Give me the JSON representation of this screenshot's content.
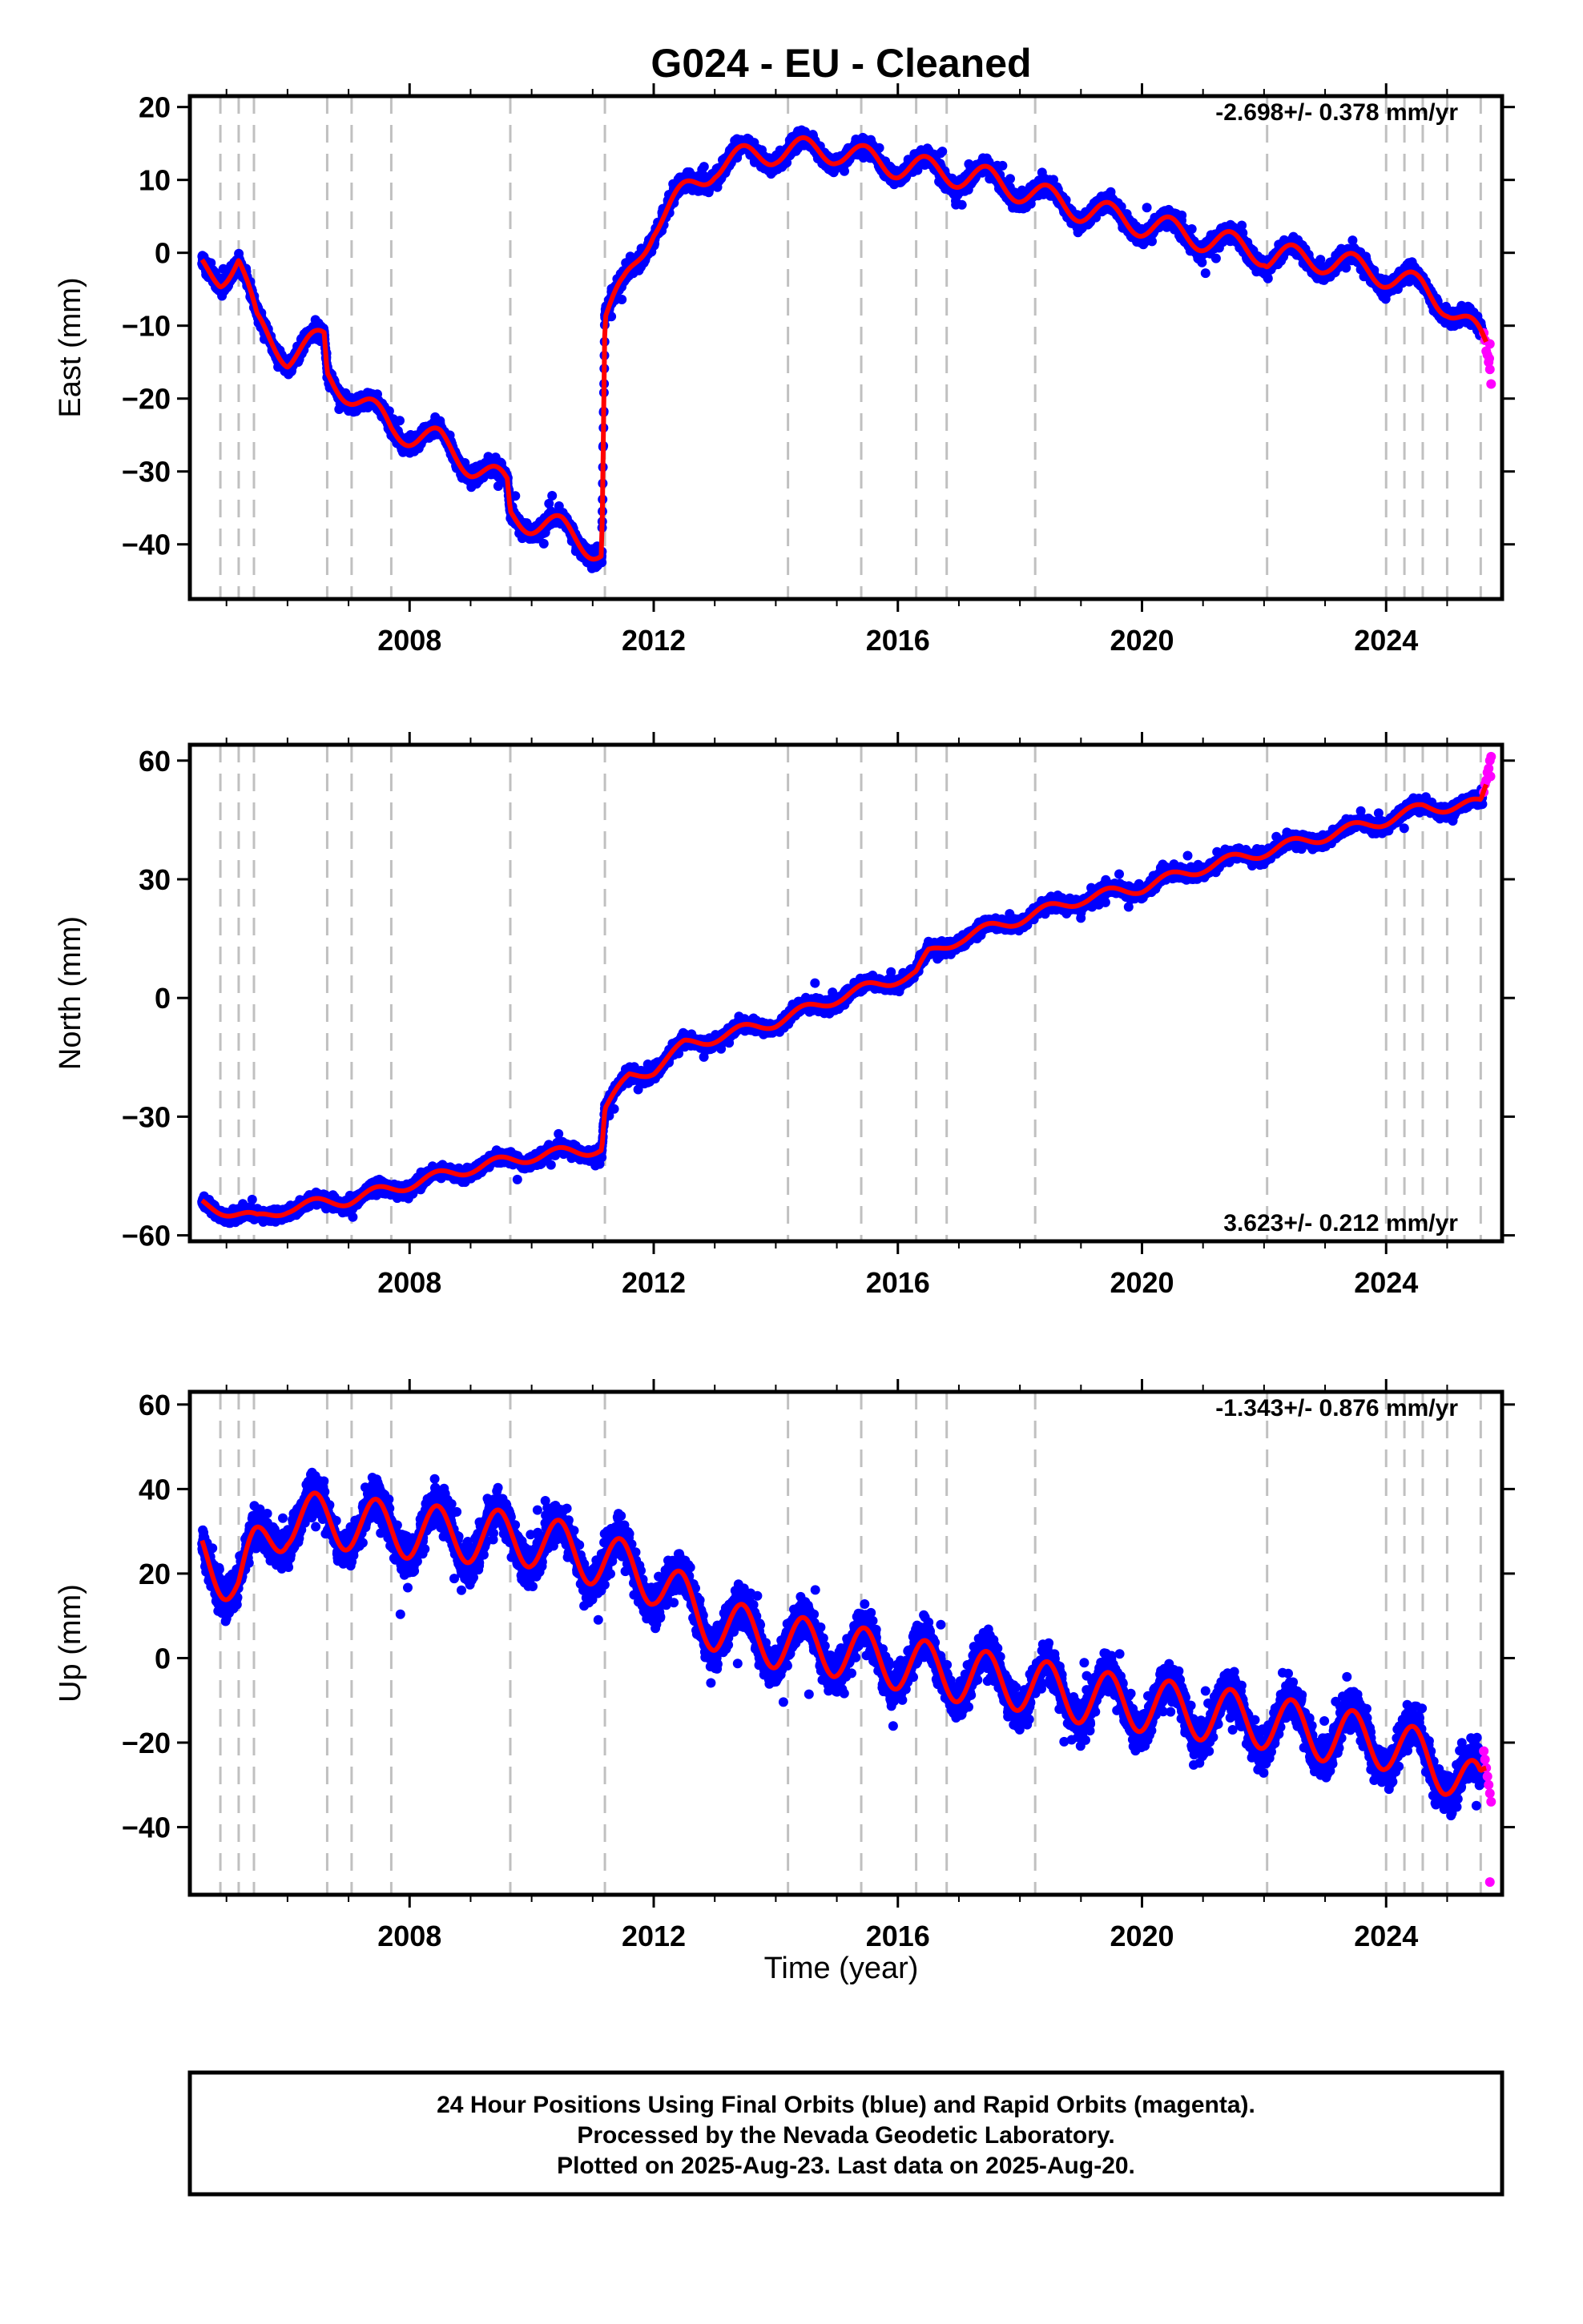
{
  "title": "G024  - EU - Cleaned",
  "xlabel": "Time (year)",
  "footer": [
    "24 Hour Positions Using Final Orbits (blue) and Rapid Orbits (magenta).",
    "Processed by the Nevada Geodetic Laboratory.",
    "Plotted on 2025-Aug-23. Last data on 2025-Aug-20."
  ],
  "colors": {
    "final": "#0000ff",
    "rapid": "#ff00ff",
    "model": "#ff0000",
    "events": "#c0c0c0"
  },
  "chart_data": [
    {
      "type": "scatter",
      "ylabel": "East (mm)",
      "rate_label": "-2.698+/- 0.378 mm/yr",
      "xlim": [
        2004.4,
        2025.9
      ],
      "ylim": [
        -47.5,
        21.5
      ],
      "xticks": [
        2008,
        2012,
        2016,
        2020,
        2024
      ],
      "yticks": [
        -40,
        -30,
        -20,
        -10,
        0,
        10,
        20
      ],
      "grid": false,
      "events": [
        2004.9,
        2005.2,
        2005.45,
        2006.65,
        2007.05,
        2007.7,
        2009.65,
        2011.2,
        2014.2,
        2015.4,
        2016.3,
        2016.8,
        2018.25,
        2022.05,
        2024.0,
        2024.3,
        2024.6,
        2025.0,
        2025.55
      ],
      "noise": 1.3,
      "seasonal_amp": 1.8,
      "model_knots": [
        [
          2004.6,
          -2
        ],
        [
          2004.9,
          -3
        ],
        [
          2005.2,
          -1
        ],
        [
          2005.5,
          -10
        ],
        [
          2006.0,
          -14
        ],
        [
          2006.6,
          -12
        ],
        [
          2006.65,
          -17
        ],
        [
          2007.0,
          -19
        ],
        [
          2007.7,
          -24
        ],
        [
          2008.5,
          -26
        ],
        [
          2009.0,
          -29
        ],
        [
          2009.6,
          -32
        ],
        [
          2009.65,
          -36
        ],
        [
          2010.5,
          -38
        ],
        [
          2011.15,
          -41
        ],
        [
          2011.2,
          -9
        ],
        [
          2011.5,
          -5
        ],
        [
          2012.0,
          4
        ],
        [
          2012.5,
          8
        ],
        [
          2013.0,
          12
        ],
        [
          2014.0,
          14
        ],
        [
          2015.0,
          14
        ],
        [
          2015.4,
          13
        ],
        [
          2016.0,
          12
        ],
        [
          2016.8,
          11
        ],
        [
          2017.5,
          10
        ],
        [
          2018.25,
          8
        ],
        [
          2019.0,
          6
        ],
        [
          2020.0,
          4
        ],
        [
          2021.0,
          2
        ],
        [
          2022.0,
          0
        ],
        [
          2022.05,
          -0.5
        ],
        [
          2023.0,
          -1
        ],
        [
          2024.0,
          -3
        ],
        [
          2024.6,
          -5
        ],
        [
          2025.0,
          -7
        ],
        [
          2025.55,
          -12
        ],
        [
          2025.65,
          -13
        ]
      ],
      "rapid": [
        [
          2025.6,
          -11
        ],
        [
          2025.62,
          -12
        ],
        [
          2025.64,
          -13.5
        ],
        [
          2025.66,
          -14
        ],
        [
          2025.68,
          -15
        ],
        [
          2025.7,
          -16
        ],
        [
          2025.72,
          -18
        ],
        [
          2025.7,
          -12.5
        ],
        [
          2025.69,
          -14.5
        ]
      ]
    },
    {
      "type": "scatter",
      "ylabel": "North (mm)",
      "rate_label": "3.623+/- 0.212 mm/yr",
      "xlim": [
        2004.4,
        2025.9
      ],
      "ylim": [
        -61.5,
        64
      ],
      "xticks": [
        2008,
        2012,
        2016,
        2020,
        2024
      ],
      "yticks": [
        -60,
        -30,
        0,
        30,
        60
      ],
      "grid": false,
      "events": [
        2004.9,
        2005.2,
        2005.45,
        2006.65,
        2007.05,
        2007.7,
        2009.65,
        2011.2,
        2014.2,
        2015.4,
        2016.3,
        2016.8,
        2018.25,
        2022.05,
        2024.0,
        2024.3,
        2024.6,
        2025.0,
        2025.55
      ],
      "noise": 1.8,
      "seasonal_amp": 1.4,
      "model_knots": [
        [
          2004.6,
          -52
        ],
        [
          2005.5,
          -56
        ],
        [
          2006.0,
          -53
        ],
        [
          2007.0,
          -51
        ],
        [
          2008.0,
          -47
        ],
        [
          2009.0,
          -43
        ],
        [
          2010.0,
          -40
        ],
        [
          2011.15,
          -38
        ],
        [
          2011.2,
          -28
        ],
        [
          2011.6,
          -20
        ],
        [
          2012.0,
          -18
        ],
        [
          2012.5,
          -12
        ],
        [
          2013.0,
          -10
        ],
        [
          2014.0,
          -6
        ],
        [
          2015.0,
          0
        ],
        [
          2015.4,
          2
        ],
        [
          2016.0,
          5
        ],
        [
          2016.3,
          6
        ],
        [
          2016.5,
          11
        ],
        [
          2017.0,
          15
        ],
        [
          2018.0,
          20
        ],
        [
          2019.0,
          25
        ],
        [
          2020.0,
          28
        ],
        [
          2021.0,
          33
        ],
        [
          2022.0,
          37
        ],
        [
          2023.0,
          41
        ],
        [
          2024.0,
          45
        ],
        [
          2024.6,
          48
        ],
        [
          2025.55,
          49
        ],
        [
          2025.65,
          54
        ]
      ],
      "rapid": [
        [
          2025.6,
          52
        ],
        [
          2025.62,
          54
        ],
        [
          2025.64,
          55
        ],
        [
          2025.66,
          57
        ],
        [
          2025.68,
          58
        ],
        [
          2025.7,
          60
        ],
        [
          2025.72,
          61
        ],
        [
          2025.71,
          56
        ]
      ]
    },
    {
      "type": "scatter",
      "ylabel": "Up (mm)",
      "rate_label": "-1.343+/- 0.876 mm/yr",
      "xlim": [
        2004.4,
        2025.9
      ],
      "ylim": [
        -56,
        63
      ],
      "xticks": [
        2008,
        2012,
        2016,
        2020,
        2024
      ],
      "yticks": [
        -40,
        -20,
        0,
        20,
        40,
        60
      ],
      "grid": false,
      "events": [
        2004.9,
        2005.2,
        2005.45,
        2006.65,
        2007.05,
        2007.7,
        2009.65,
        2011.2,
        2014.2,
        2015.4,
        2016.3,
        2016.8,
        2018.25,
        2022.05,
        2024.0,
        2024.3,
        2024.6,
        2025.0,
        2025.55
      ],
      "noise": 5.5,
      "seasonal_amp": 6.5,
      "model_knots": [
        [
          2004.6,
          24
        ],
        [
          2005.2,
          18
        ],
        [
          2005.45,
          24
        ],
        [
          2006.0,
          33
        ],
        [
          2007.0,
          32
        ],
        [
          2008.0,
          30
        ],
        [
          2009.0,
          29
        ],
        [
          2010.0,
          28
        ],
        [
          2011.2,
          23
        ],
        [
          2012.0,
          19
        ],
        [
          2012.7,
          11
        ],
        [
          2013.0,
          8
        ],
        [
          2014.0,
          4
        ],
        [
          2015.0,
          2
        ],
        [
          2016.0,
          -1
        ],
        [
          2017.0,
          -4
        ],
        [
          2018.0,
          -6
        ],
        [
          2019.0,
          -9
        ],
        [
          2020.0,
          -11
        ],
        [
          2021.0,
          -13
        ],
        [
          2022.0,
          -15
        ],
        [
          2023.0,
          -18
        ],
        [
          2024.0,
          -20
        ],
        [
          2025.0,
          -26
        ],
        [
          2025.55,
          -32
        ],
        [
          2025.65,
          -28
        ]
      ],
      "rapid": [
        [
          2025.6,
          -22
        ],
        [
          2025.62,
          -24
        ],
        [
          2025.64,
          -26
        ],
        [
          2025.66,
          -28
        ],
        [
          2025.68,
          -30
        ],
        [
          2025.7,
          -32
        ],
        [
          2025.72,
          -34
        ],
        [
          2025.7,
          -53
        ]
      ]
    }
  ]
}
